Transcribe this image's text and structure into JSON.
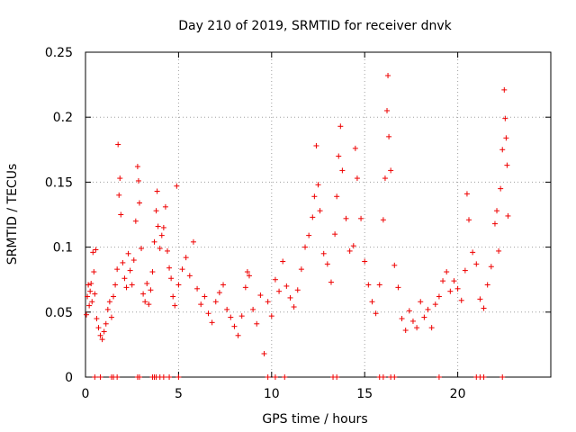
{
  "chart_data": {
    "type": "scatter",
    "title": "Day 210 of 2019, SRMTID for receiver dnvk",
    "xlabel": "GPS time / hours",
    "ylabel": "SRMTID / TECUs",
    "xlim": [
      0,
      25
    ],
    "ylim": [
      0,
      0.25
    ],
    "xticks": [
      0,
      5,
      10,
      15,
      20
    ],
    "xtick_labels": [
      "0",
      "5",
      "10",
      "15",
      "20"
    ],
    "yticks": [
      0,
      0.05,
      0.1,
      0.15,
      0.2,
      0.25
    ],
    "ytick_labels": [
      "0",
      "0.05",
      "0.1",
      "0.15",
      "0.2",
      "0.25"
    ],
    "grid": true,
    "marker": "plus",
    "series": [
      {
        "name": "SRMTID",
        "color": "#ee0000",
        "points": [
          [
            0.05,
            0.048
          ],
          [
            0.1,
            0.062
          ],
          [
            0.15,
            0.071
          ],
          [
            0.2,
            0.055
          ],
          [
            0.25,
            0.066
          ],
          [
            0.3,
            0.072
          ],
          [
            0.35,
            0.058
          ],
          [
            0.4,
            0.096
          ],
          [
            0.45,
            0.081
          ],
          [
            0.5,
            0.064
          ],
          [
            0.55,
            0.098
          ],
          [
            0.6,
            0.045
          ],
          [
            0.7,
            0.038
          ],
          [
            0.8,
            0.032
          ],
          [
            0.9,
            0.029
          ],
          [
            1.0,
            0.035
          ],
          [
            1.1,
            0.041
          ],
          [
            1.2,
            0.052
          ],
          [
            1.3,
            0.058
          ],
          [
            1.4,
            0.046
          ],
          [
            1.5,
            0.062
          ],
          [
            1.6,
            0.071
          ],
          [
            1.7,
            0.083
          ],
          [
            1.75,
            0.179
          ],
          [
            1.8,
            0.14
          ],
          [
            1.85,
            0.153
          ],
          [
            1.9,
            0.125
          ],
          [
            2.0,
            0.088
          ],
          [
            2.1,
            0.076
          ],
          [
            2.2,
            0.069
          ],
          [
            2.3,
            0.095
          ],
          [
            2.4,
            0.082
          ],
          [
            2.5,
            0.071
          ],
          [
            2.6,
            0.09
          ],
          [
            2.7,
            0.12
          ],
          [
            2.8,
            0.162
          ],
          [
            2.85,
            0.151
          ],
          [
            2.9,
            0.134
          ],
          [
            3.0,
            0.099
          ],
          [
            3.1,
            0.064
          ],
          [
            3.2,
            0.058
          ],
          [
            3.3,
            0.072
          ],
          [
            3.4,
            0.056
          ],
          [
            3.5,
            0.067
          ],
          [
            3.6,
            0.081
          ],
          [
            3.7,
            0.104
          ],
          [
            3.8,
            0.128
          ],
          [
            3.85,
            0.143
          ],
          [
            3.9,
            0.116
          ],
          [
            4.0,
            0.099
          ],
          [
            4.1,
            0.109
          ],
          [
            4.2,
            0.115
          ],
          [
            4.3,
            0.131
          ],
          [
            4.4,
            0.097
          ],
          [
            4.5,
            0.084
          ],
          [
            4.6,
            0.076
          ],
          [
            4.7,
            0.062
          ],
          [
            4.8,
            0.055
          ],
          [
            4.9,
            0.147
          ],
          [
            5.0,
            0.071
          ],
          [
            5.2,
            0.083
          ],
          [
            5.4,
            0.092
          ],
          [
            5.6,
            0.078
          ],
          [
            5.8,
            0.104
          ],
          [
            6.0,
            0.068
          ],
          [
            6.2,
            0.056
          ],
          [
            6.4,
            0.062
          ],
          [
            6.6,
            0.049
          ],
          [
            6.8,
            0.042
          ],
          [
            7.0,
            0.058
          ],
          [
            7.2,
            0.065
          ],
          [
            7.4,
            0.071
          ],
          [
            7.6,
            0.052
          ],
          [
            7.8,
            0.046
          ],
          [
            8.0,
            0.039
          ],
          [
            8.2,
            0.032
          ],
          [
            8.4,
            0.047
          ],
          [
            8.6,
            0.069
          ],
          [
            8.7,
            0.081
          ],
          [
            8.8,
            0.078
          ],
          [
            9.0,
            0.052
          ],
          [
            9.2,
            0.041
          ],
          [
            9.4,
            0.063
          ],
          [
            9.6,
            0.018
          ],
          [
            9.8,
            0.058
          ],
          [
            10.0,
            0.047
          ],
          [
            10.2,
            0.075
          ],
          [
            10.4,
            0.066
          ],
          [
            10.6,
            0.089
          ],
          [
            10.8,
            0.07
          ],
          [
            11.0,
            0.061
          ],
          [
            11.2,
            0.054
          ],
          [
            11.4,
            0.067
          ],
          [
            11.6,
            0.083
          ],
          [
            11.8,
            0.1
          ],
          [
            12.0,
            0.109
          ],
          [
            12.2,
            0.123
          ],
          [
            12.3,
            0.139
          ],
          [
            12.4,
            0.178
          ],
          [
            12.5,
            0.148
          ],
          [
            12.6,
            0.128
          ],
          [
            12.8,
            0.095
          ],
          [
            13.0,
            0.087
          ],
          [
            13.2,
            0.073
          ],
          [
            13.4,
            0.11
          ],
          [
            13.5,
            0.139
          ],
          [
            13.6,
            0.17
          ],
          [
            13.7,
            0.193
          ],
          [
            13.8,
            0.159
          ],
          [
            14.0,
            0.122
          ],
          [
            14.2,
            0.097
          ],
          [
            14.4,
            0.101
          ],
          [
            14.5,
            0.176
          ],
          [
            14.6,
            0.153
          ],
          [
            14.8,
            0.122
          ],
          [
            15.0,
            0.089
          ],
          [
            15.2,
            0.071
          ],
          [
            15.4,
            0.058
          ],
          [
            15.6,
            0.049
          ],
          [
            15.8,
            0.071
          ],
          [
            16.0,
            0.121
          ],
          [
            16.1,
            0.153
          ],
          [
            16.2,
            0.205
          ],
          [
            16.25,
            0.232
          ],
          [
            16.3,
            0.185
          ],
          [
            16.4,
            0.159
          ],
          [
            16.6,
            0.086
          ],
          [
            16.8,
            0.069
          ],
          [
            17.0,
            0.045
          ],
          [
            17.2,
            0.036
          ],
          [
            17.4,
            0.051
          ],
          [
            17.6,
            0.043
          ],
          [
            17.8,
            0.038
          ],
          [
            18.0,
            0.058
          ],
          [
            18.2,
            0.046
          ],
          [
            18.4,
            0.052
          ],
          [
            18.6,
            0.038
          ],
          [
            18.8,
            0.056
          ],
          [
            19.0,
            0.062
          ],
          [
            19.2,
            0.074
          ],
          [
            19.4,
            0.081
          ],
          [
            19.6,
            0.066
          ],
          [
            19.8,
            0.074
          ],
          [
            20.0,
            0.068
          ],
          [
            20.2,
            0.059
          ],
          [
            20.4,
            0.082
          ],
          [
            20.5,
            0.141
          ],
          [
            20.6,
            0.121
          ],
          [
            20.8,
            0.096
          ],
          [
            21.0,
            0.087
          ],
          [
            21.2,
            0.06
          ],
          [
            21.4,
            0.053
          ],
          [
            21.6,
            0.071
          ],
          [
            21.8,
            0.085
          ],
          [
            22.0,
            0.118
          ],
          [
            22.1,
            0.128
          ],
          [
            22.2,
            0.097
          ],
          [
            22.3,
            0.145
          ],
          [
            22.4,
            0.175
          ],
          [
            22.5,
            0.221
          ],
          [
            22.55,
            0.199
          ],
          [
            22.6,
            0.184
          ],
          [
            22.65,
            0.163
          ],
          [
            22.7,
            0.124
          ]
        ]
      },
      {
        "name": "zero-values",
        "color": "#ee0000",
        "points": [
          [
            0.5,
            0
          ],
          [
            0.8,
            0
          ],
          [
            1.4,
            0
          ],
          [
            1.5,
            0
          ],
          [
            1.7,
            0
          ],
          [
            2.8,
            0
          ],
          [
            2.9,
            0
          ],
          [
            3.6,
            0
          ],
          [
            3.7,
            0
          ],
          [
            3.8,
            0
          ],
          [
            4.0,
            0
          ],
          [
            4.2,
            0
          ],
          [
            4.5,
            0
          ],
          [
            5.0,
            0
          ],
          [
            9.8,
            0
          ],
          [
            10.2,
            0
          ],
          [
            10.7,
            0
          ],
          [
            13.3,
            0
          ],
          [
            13.5,
            0
          ],
          [
            15.8,
            0
          ],
          [
            16.0,
            0
          ],
          [
            16.4,
            0
          ],
          [
            16.6,
            0
          ],
          [
            19.0,
            0
          ],
          [
            21.0,
            0
          ],
          [
            21.2,
            0
          ],
          [
            21.4,
            0
          ],
          [
            22.4,
            0
          ]
        ]
      }
    ]
  }
}
